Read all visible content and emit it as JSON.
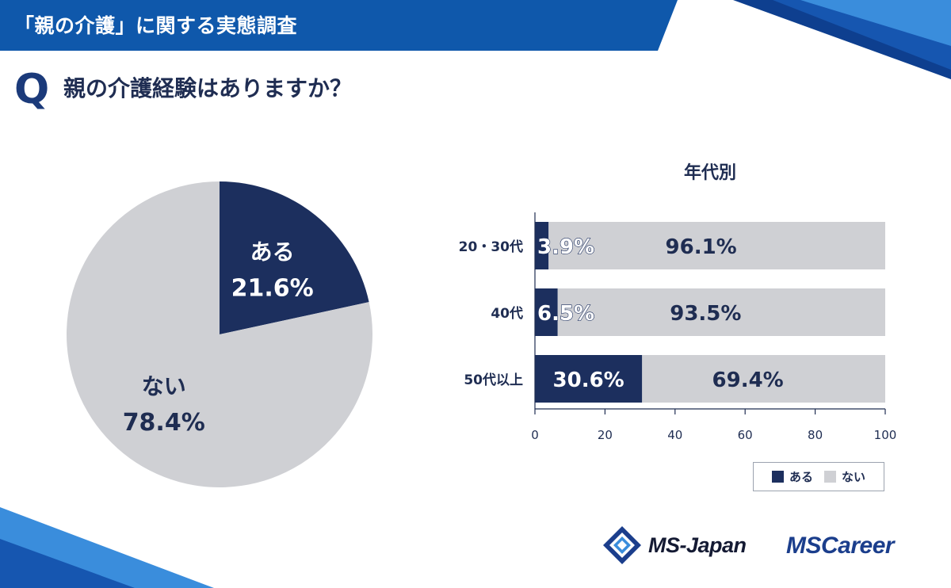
{
  "header": {
    "banner_title": "「親の介護」に関する実態調査",
    "question_mark": "Q",
    "question": "親の介護経験はありますか？"
  },
  "colors": {
    "banner_blue": "#0f58ab",
    "accent_light_blue": "#3a8ddc",
    "aru_navy": "#1c2f5e",
    "nai_gray": "#cfd0d4",
    "text_navy": "#1f2d52"
  },
  "chart_data": [
    {
      "type": "pie",
      "title": "",
      "slices": [
        {
          "label": "ある",
          "value": 21.6,
          "display": "21.6%"
        },
        {
          "label": "ない",
          "value": 78.4,
          "display": "78.4%"
        }
      ]
    },
    {
      "type": "bar",
      "orientation": "horizontal",
      "stacked": true,
      "title": "年代別",
      "categories": [
        "20・30代",
        "40代",
        "50代以上"
      ],
      "series": [
        {
          "name": "ある",
          "values": [
            3.9,
            6.5,
            30.6
          ],
          "labels": [
            "3.9%",
            "6.5%",
            "30.6%"
          ]
        },
        {
          "name": "ない",
          "values": [
            96.1,
            93.5,
            69.4
          ],
          "labels": [
            "96.1%",
            "93.5%",
            "69.4%"
          ]
        }
      ],
      "xlim": [
        0,
        100
      ],
      "xticks": [
        "0",
        "20",
        "40",
        "60",
        "80",
        "100"
      ],
      "grid": false,
      "legend_position": "bottom-right"
    }
  ],
  "legend": {
    "items": [
      {
        "label": "ある",
        "color": "#1c2f5e"
      },
      {
        "label": "ない",
        "color": "#cfd0d4"
      }
    ]
  },
  "logos": {
    "ms_japan": "MS-Japan",
    "ms_career": "MSCareer"
  }
}
